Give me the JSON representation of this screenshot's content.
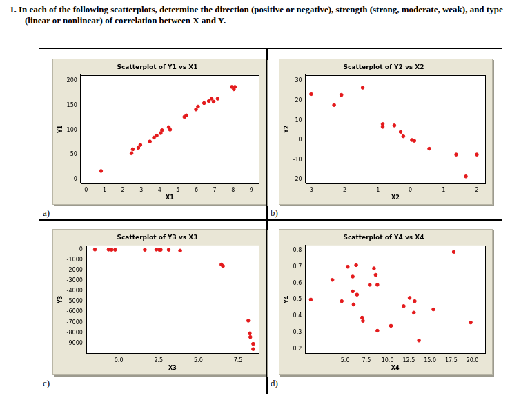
{
  "question": "1.  In each of the following scatterplots, determine the direction (positive or negative), strength (strong, moderate, weak), and type (linear or nonlinear) of correlation between X and Y.",
  "chart_data": [
    {
      "panel": "a)",
      "type": "scatter",
      "title": "Scatterplot of Y1 vs X1",
      "x_label": "X1",
      "y_label": "Y1",
      "x": [
        0.81,
        2.47,
        2.54,
        2.84,
        2.95,
        3.47,
        3.69,
        3.84,
        4.06,
        4.13,
        4.5,
        4.57,
        5.35,
        5.46,
        5.98,
        6.09,
        6.42,
        6.68,
        6.83,
        6.94,
        7.16,
        7.93,
        8.04,
        8.1
      ],
      "values": [
        17,
        53,
        61,
        64,
        70,
        77,
        85,
        89,
        94,
        100,
        106,
        101,
        127,
        130,
        142,
        148,
        155,
        159,
        164,
        158,
        164,
        188,
        183,
        188
      ],
      "color": "#e41a1c",
      "marker": "circle",
      "grid": false,
      "xlim": [
        -0.3,
        9.4
      ],
      "ylim": [
        -8,
        212
      ],
      "xticks": [
        0,
        1,
        2,
        3,
        4,
        5,
        6,
        7,
        8,
        9
      ],
      "yticks": [
        0,
        50,
        100,
        150,
        200
      ]
    },
    {
      "panel": "b)",
      "type": "scatter",
      "title": "Scatterplot of Y2 vs X2",
      "x_label": "X2",
      "y_label": "Y2",
      "x": [
        -2.98,
        -2.29,
        -2.07,
        -1.43,
        -0.83,
        -0.83,
        -0.48,
        -0.29,
        -0.21,
        0.05,
        0.12,
        0.57,
        1.38,
        2.0,
        1.67
      ],
      "values": [
        23.3,
        17.8,
        22.9,
        26.6,
        8.1,
        6.7,
        7.4,
        4.1,
        1.9,
        0,
        -0.4,
        -4.4,
        -7.4,
        -7.4,
        -18.5
      ],
      "color": "#e41a1c",
      "marker": "circle",
      "grid": false,
      "xlim": [
        -3.15,
        2.25
      ],
      "ylim": [
        -22,
        33
      ],
      "xticks": [
        -3,
        -2,
        -1,
        0,
        1,
        2
      ],
      "yticks": [
        -20,
        -10,
        0,
        10,
        20,
        30
      ]
    },
    {
      "panel": "c)",
      "type": "scatter",
      "title": "Scatterplot of Y3 vs X3",
      "x_label": "X3",
      "y_label": "Y3",
      "x": [
        -1.5,
        -0.64,
        -0.45,
        -0.23,
        1.64,
        2.36,
        2.55,
        2.64,
        3.14,
        3.86,
        6.45,
        6.55,
        8.14,
        8.23,
        8.27,
        8.45,
        8.45
      ],
      "values": [
        0,
        0,
        -20,
        -20,
        -20,
        0,
        -20,
        -20,
        -20,
        -100,
        -1440,
        -1580,
        -6830,
        -8050,
        -8400,
        -9060,
        -9560
      ],
      "color": "#e41a1c",
      "marker": "circle",
      "grid": false,
      "xlim": [
        -2.05,
        8.8
      ],
      "ylim": [
        -10000,
        400
      ],
      "xticks": [
        {
          "value": 0,
          "label": "0.0"
        },
        {
          "value": 2.5,
          "label": "2.5"
        },
        {
          "value": 5,
          "label": "5.0"
        },
        {
          "value": 7.5,
          "label": "7.5"
        }
      ],
      "yticks": [
        -9000,
        -8000,
        -7000,
        -6000,
        -5000,
        -4000,
        -3000,
        -2000,
        -1000,
        0
      ]
    },
    {
      "panel": "d)",
      "type": "scatter",
      "title": "Scatterplot of Y4 vs X4",
      "x_label": "X4",
      "y_label": "Y4",
      "x": [
        0.96,
        3.5,
        4.6,
        5.3,
        5.9,
        5.9,
        6.3,
        6.0,
        6.4,
        7.0,
        7.1,
        7.9,
        8.4,
        8.6,
        8.8,
        8.8,
        10.4,
        11.9,
        12.6,
        13.2,
        13.1,
        13.7,
        15.4,
        17.8,
        19.8
      ],
      "values": [
        0.5,
        0.62,
        0.49,
        0.7,
        0.64,
        0.55,
        0.71,
        0.47,
        0.53,
        0.39,
        0.37,
        0.59,
        0.69,
        0.65,
        0.59,
        0.31,
        0.34,
        0.46,
        0.51,
        0.49,
        0.42,
        0.25,
        0.44,
        0.79,
        0.36
      ],
      "color": "#e41a1c",
      "marker": "circle",
      "grid": false,
      "xlim": [
        0.3,
        21.5
      ],
      "ylim": [
        0.17,
        0.83
      ],
      "xticks": [
        {
          "value": 5,
          "label": "5.0"
        },
        {
          "value": 7.5,
          "label": "7.5"
        },
        {
          "value": 10,
          "label": "10.0"
        },
        {
          "value": 12.5,
          "label": "12.5"
        },
        {
          "value": 15,
          "label": "15.0"
        },
        {
          "value": 17.5,
          "label": "17.5"
        },
        {
          "value": 20,
          "label": "20.0"
        }
      ],
      "yticks": [
        0.2,
        0.3,
        0.4,
        0.5,
        0.6,
        0.7,
        0.8
      ]
    }
  ]
}
